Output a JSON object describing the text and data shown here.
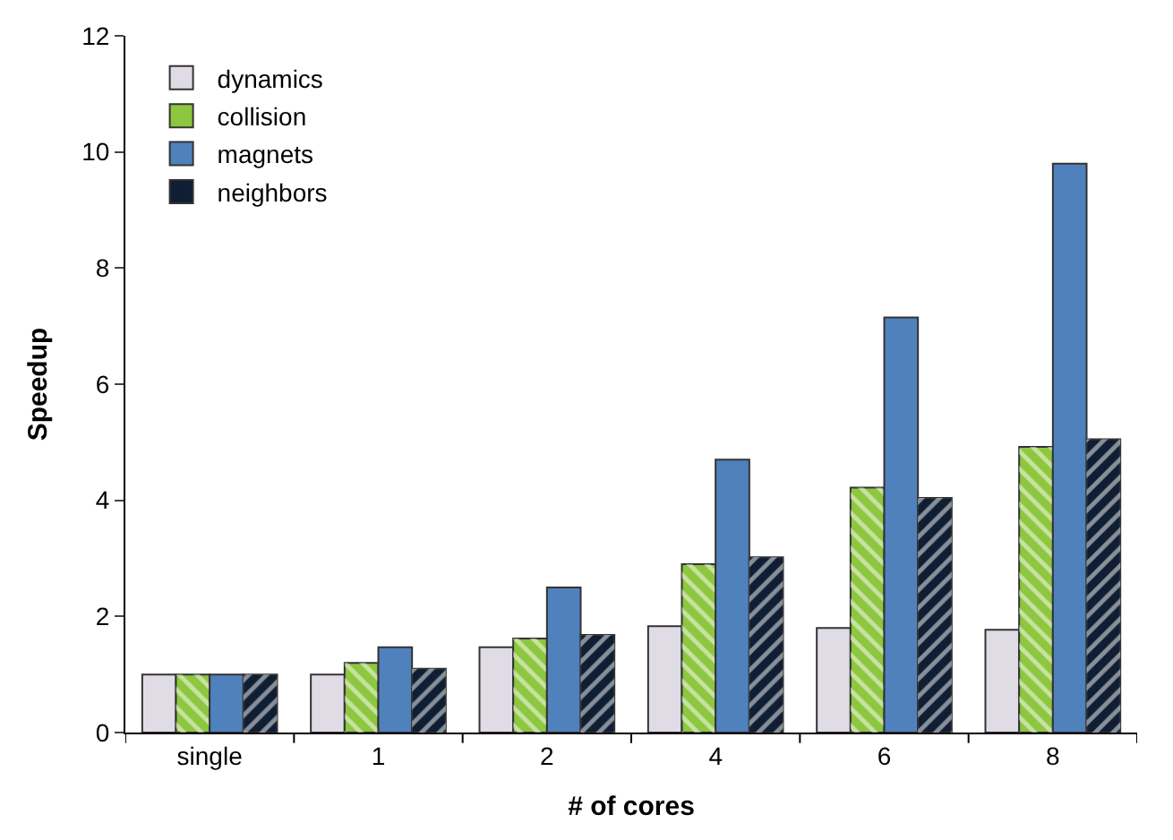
{
  "chart_data": {
    "type": "bar",
    "xlabel": "# of cores",
    "ylabel": "Speedup",
    "categories": [
      "single",
      "1",
      "2",
      "4",
      "6",
      "8"
    ],
    "series": [
      {
        "name": "dynamics",
        "color": "#e0dce6",
        "values": [
          1.0,
          1.0,
          1.47,
          1.83,
          1.8,
          1.77
        ]
      },
      {
        "name": "collision",
        "color": "#8dc63f",
        "values": [
          1.0,
          1.2,
          1.62,
          2.9,
          4.22,
          4.92
        ]
      },
      {
        "name": "magnets",
        "color": "#4f81bd",
        "values": [
          1.0,
          1.47,
          2.5,
          4.7,
          7.15,
          9.8
        ]
      },
      {
        "name": "neighbors",
        "color": "#0f1e33",
        "values": [
          1.0,
          1.1,
          1.68,
          3.02,
          4.04,
          5.05
        ]
      }
    ],
    "ylim": [
      0,
      12
    ],
    "yticks": [
      0,
      2,
      4,
      6,
      8,
      10,
      12
    ],
    "legend": "top left"
  }
}
